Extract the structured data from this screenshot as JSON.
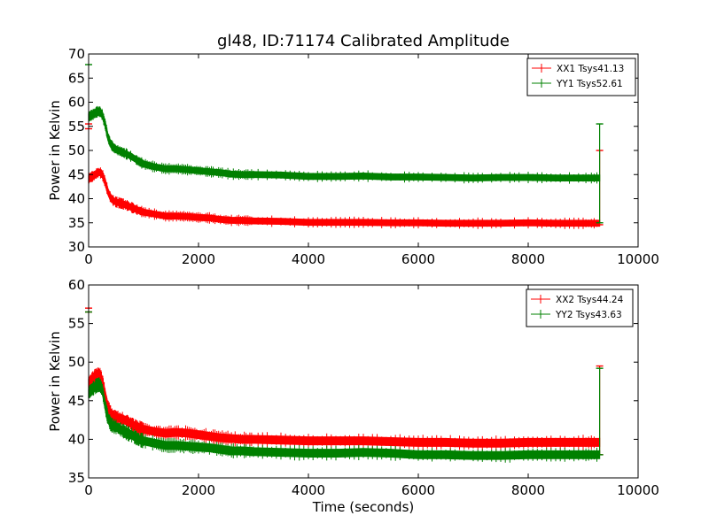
{
  "title": "gl48, ID:71174 Calibrated Amplitude",
  "xlabel": "Time (seconds)",
  "chart_data": [
    {
      "type": "line",
      "title": "gl48, ID:71174 Calibrated Amplitude",
      "xlabel": "",
      "ylabel": "Power in Kelvin",
      "xlim": [
        0,
        10000
      ],
      "ylim": [
        30,
        70
      ],
      "xticks": [
        "0",
        "2000",
        "4000",
        "6000",
        "8000",
        "10000"
      ],
      "yticks": [
        "30",
        "35",
        "40",
        "45",
        "50",
        "55",
        "60",
        "65",
        "70"
      ],
      "legend_position": "top-right",
      "series": [
        {
          "name": "XX1 Tsys41.13",
          "color": "#ff0000",
          "x": [
            0,
            50,
            100,
            150,
            200,
            250,
            300,
            350,
            400,
            450,
            500,
            600,
            700,
            800,
            900,
            1000,
            1200,
            1400,
            1600,
            1800,
            2000,
            2200,
            2400,
            2600,
            2800,
            3000,
            3500,
            4000,
            4500,
            5000,
            5500,
            6000,
            6500,
            7000,
            7500,
            8000,
            8500,
            9000,
            9300
          ],
          "y": [
            44.2,
            44.5,
            44.8,
            45.3,
            45.5,
            45.0,
            43.5,
            41.5,
            40.2,
            39.6,
            39.3,
            39.0,
            38.6,
            38.1,
            37.6,
            37.2,
            36.8,
            36.4,
            36.4,
            36.3,
            36.1,
            36.0,
            35.7,
            35.5,
            35.5,
            35.4,
            35.3,
            35.1,
            35.1,
            35.1,
            35.0,
            35.0,
            34.9,
            34.9,
            34.9,
            35.0,
            34.9,
            34.9,
            34.9
          ],
          "band": 0.6,
          "outliers": [
            [
              0,
              54.5
            ],
            [
              0,
              55.5
            ],
            [
              9300,
              34.6
            ],
            [
              9300,
              50
            ]
          ]
        },
        {
          "name": "YY1 Tsys52.61",
          "color": "#008000",
          "x": [
            0,
            50,
            100,
            150,
            200,
            250,
            300,
            350,
            400,
            450,
            500,
            600,
            700,
            800,
            900,
            1000,
            1200,
            1400,
            1600,
            1800,
            2000,
            2200,
            2400,
            2600,
            2800,
            3000,
            3500,
            4000,
            4500,
            5000,
            5500,
            6000,
            6500,
            7000,
            7500,
            8000,
            8500,
            9000,
            9300
          ],
          "y": [
            57.0,
            57.3,
            57.6,
            58.0,
            58.1,
            57.4,
            55.5,
            52.8,
            51.4,
            50.6,
            50.2,
            49.7,
            49.2,
            48.6,
            47.8,
            47.2,
            46.6,
            46.2,
            46.2,
            46.0,
            45.8,
            45.6,
            45.4,
            45.1,
            45.0,
            45.0,
            44.9,
            44.6,
            44.6,
            44.7,
            44.5,
            44.5,
            44.4,
            44.3,
            44.4,
            44.4,
            44.3,
            44.3,
            44.3
          ],
          "band": 0.6,
          "outliers": [
            [
              0,
              67.8
            ],
            [
              9300,
              35
            ],
            [
              9300,
              55.5
            ]
          ]
        }
      ]
    },
    {
      "type": "line",
      "title": "",
      "xlabel": "Time (seconds)",
      "ylabel": "Power in Kelvin",
      "xlim": [
        0,
        10000
      ],
      "ylim": [
        35,
        60
      ],
      "xticks": [
        "0",
        "2000",
        "4000",
        "6000",
        "8000",
        "10000"
      ],
      "yticks": [
        "35",
        "40",
        "45",
        "50",
        "55",
        "60"
      ],
      "legend_position": "top-right",
      "series": [
        {
          "name": "XX2 Tsys44.24",
          "color": "#ff0000",
          "x": [
            0,
            50,
            100,
            150,
            200,
            250,
            300,
            350,
            400,
            450,
            500,
            600,
            700,
            800,
            900,
            1000,
            1200,
            1400,
            1600,
            1800,
            2000,
            2200,
            2400,
            2600,
            2800,
            3000,
            3500,
            4000,
            4500,
            5000,
            5500,
            6000,
            6500,
            7000,
            7500,
            8000,
            8500,
            9000,
            9300
          ],
          "y": [
            47.3,
            47.7,
            48.1,
            48.3,
            48.4,
            47.6,
            45.8,
            44.2,
            43.4,
            43.0,
            42.9,
            42.6,
            42.4,
            41.9,
            41.5,
            41.3,
            41.0,
            40.8,
            40.9,
            40.8,
            40.6,
            40.4,
            40.2,
            40.1,
            40.0,
            40.0,
            39.9,
            39.8,
            39.8,
            39.8,
            39.7,
            39.6,
            39.6,
            39.5,
            39.5,
            39.6,
            39.6,
            39.6,
            39.6
          ],
          "band": 0.5,
          "outliers": [
            [
              0,
              56.5
            ],
            [
              0,
              57
            ],
            [
              9300,
              38
            ],
            [
              9300,
              49.5
            ]
          ]
        },
        {
          "name": "YY2 Tsys43.63",
          "color": "#008000",
          "x": [
            0,
            50,
            100,
            150,
            200,
            250,
            300,
            350,
            400,
            450,
            500,
            600,
            700,
            800,
            900,
            1000,
            1200,
            1400,
            1600,
            1800,
            2000,
            2200,
            2400,
            2600,
            2800,
            3000,
            3500,
            4000,
            4500,
            5000,
            5500,
            6000,
            6500,
            7000,
            7500,
            8000,
            8500,
            9000,
            9300
          ],
          "y": [
            46.0,
            46.4,
            46.7,
            47.0,
            47.1,
            46.4,
            44.4,
            42.8,
            42.0,
            41.7,
            41.6,
            41.2,
            40.8,
            40.5,
            40.0,
            39.8,
            39.5,
            39.2,
            39.2,
            39.1,
            39.0,
            38.9,
            38.7,
            38.5,
            38.5,
            38.4,
            38.3,
            38.2,
            38.2,
            38.3,
            38.2,
            38.0,
            38.0,
            37.9,
            37.9,
            38.0,
            38.0,
            38.0,
            38.0
          ],
          "band": 0.5,
          "outliers": [
            [
              0,
              56.5
            ],
            [
              9300,
              38
            ],
            [
              9300,
              49.2
            ]
          ]
        }
      ]
    }
  ]
}
